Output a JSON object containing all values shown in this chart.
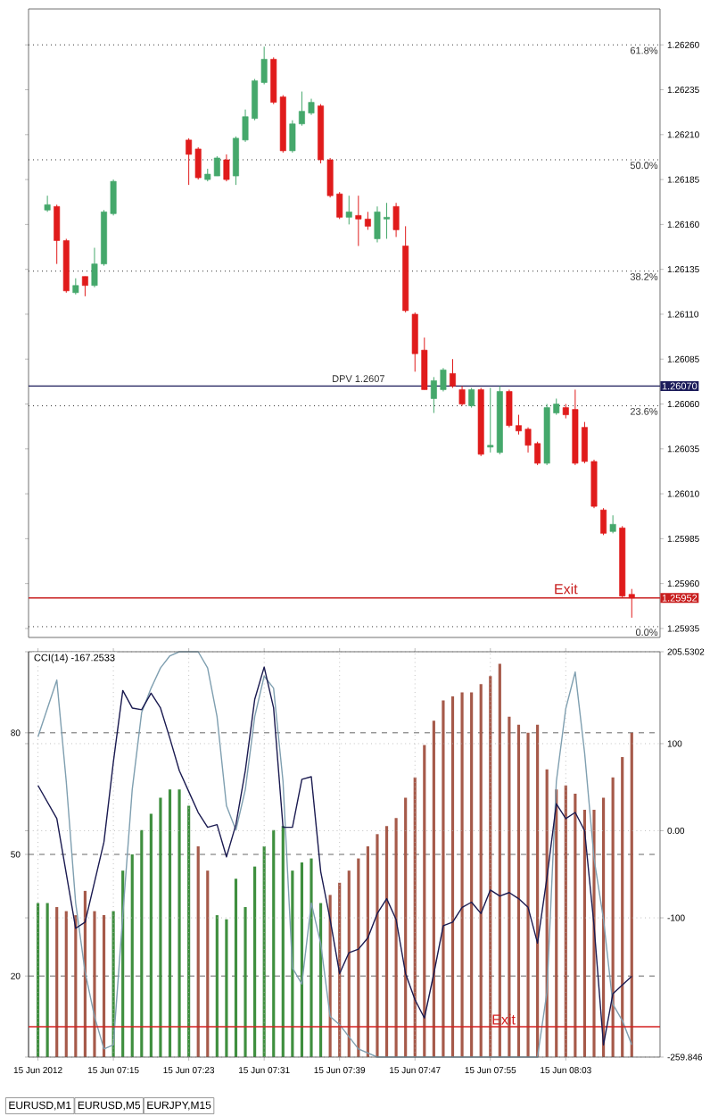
{
  "chart_data": [
    {
      "type": "candlestick",
      "xlim": [
        "2012-06-15T07:06",
        "2012-06-15T08:13"
      ],
      "tick_labels": "y",
      "ylim": [
        1.2593,
        1.2628
      ],
      "yticks": [
        {
          "value": 1.25935,
          "label": "1.25935"
        },
        {
          "value": 1.2596,
          "label": "1.25960"
        },
        {
          "value": 1.25985,
          "label": "1.25985"
        },
        {
          "value": 1.2601,
          "label": "1.26010"
        },
        {
          "value": 1.26035,
          "label": "1.26035"
        },
        {
          "value": 1.2606,
          "label": "1.26060"
        },
        {
          "value": 1.26085,
          "label": "1.26085"
        },
        {
          "value": 1.2611,
          "label": "1.26110"
        },
        {
          "value": 1.26135,
          "label": "1.26135"
        },
        {
          "value": 1.2616,
          "label": "1.26160"
        },
        {
          "value": 1.26185,
          "label": "1.26185"
        },
        {
          "value": 1.2621,
          "label": "1.26210"
        },
        {
          "value": 1.26235,
          "label": "1.26235"
        },
        {
          "value": 1.2626,
          "label": "1.26260"
        }
      ],
      "x": [
        "2012-06-15T07:08",
        "2012-06-15T07:09",
        "2012-06-15T07:10",
        "2012-06-15T07:11",
        "2012-06-15T07:12",
        "2012-06-15T07:13",
        "2012-06-15T07:14",
        "2012-06-15T07:15",
        "2012-06-15T07:23",
        "2012-06-15T07:24",
        "2012-06-15T07:25",
        "2012-06-15T07:26",
        "2012-06-15T07:27",
        "2012-06-15T07:28",
        "2012-06-15T07:29",
        "2012-06-15T07:30",
        "2012-06-15T07:31",
        "2012-06-15T07:32",
        "2012-06-15T07:33",
        "2012-06-15T07:34",
        "2012-06-15T07:35",
        "2012-06-15T07:36",
        "2012-06-15T07:37",
        "2012-06-15T07:38",
        "2012-06-15T07:39",
        "2012-06-15T07:40",
        "2012-06-15T07:41",
        "2012-06-15T07:42",
        "2012-06-15T07:43",
        "2012-06-15T07:44",
        "2012-06-15T07:45",
        "2012-06-15T07:46",
        "2012-06-15T07:47",
        "2012-06-15T07:48",
        "2012-06-15T07:49",
        "2012-06-15T07:50",
        "2012-06-15T07:51",
        "2012-06-15T07:52",
        "2012-06-15T07:53",
        "2012-06-15T07:54",
        "2012-06-15T07:55",
        "2012-06-15T07:56",
        "2012-06-15T07:57",
        "2012-06-15T07:58",
        "2012-06-15T07:59",
        "2012-06-15T08:00",
        "2012-06-15T08:01",
        "2012-06-15T08:02",
        "2012-06-15T08:03",
        "2012-06-15T08:04",
        "2012-06-15T08:05",
        "2012-06-15T08:06",
        "2012-06-15T08:07",
        "2012-06-15T08:08",
        "2012-06-15T08:09",
        "2012-06-15T08:10"
      ],
      "ohlc": [
        [
          1.26168,
          1.26176,
          1.26167,
          1.26171
        ],
        [
          1.2617,
          1.26171,
          1.26138,
          1.26151
        ],
        [
          1.26151,
          1.26152,
          1.26122,
          1.26123
        ],
        [
          1.26122,
          1.2613,
          1.26121,
          1.26126
        ],
        [
          1.26131,
          1.26131,
          1.2612,
          1.26126
        ],
        [
          1.26126,
          1.26147,
          1.26125,
          1.26138
        ],
        [
          1.26138,
          1.26168,
          1.26137,
          1.26167
        ],
        [
          1.26166,
          1.26185,
          1.26165,
          1.26184
        ],
        [
          1.26207,
          1.26208,
          1.26182,
          1.26199
        ],
        [
          1.26202,
          1.26203,
          1.26185,
          1.26186
        ],
        [
          1.26185,
          1.26191,
          1.26184,
          1.26188
        ],
        [
          1.26187,
          1.26198,
          1.26187,
          1.26197
        ],
        [
          1.26196,
          1.26199,
          1.26184,
          1.26185
        ],
        [
          1.26187,
          1.26209,
          1.26182,
          1.26208
        ],
        [
          1.26207,
          1.26224,
          1.26206,
          1.2622
        ],
        [
          1.26219,
          1.26241,
          1.26218,
          1.2624
        ],
        [
          1.26239,
          1.26259,
          1.26238,
          1.26252
        ],
        [
          1.26252,
          1.26253,
          1.26227,
          1.26228
        ],
        [
          1.26231,
          1.26232,
          1.262,
          1.26201
        ],
        [
          1.26201,
          1.26218,
          1.262,
          1.26216
        ],
        [
          1.26216,
          1.26234,
          1.26215,
          1.26223
        ],
        [
          1.26222,
          1.2623,
          1.26221,
          1.26228
        ],
        [
          1.26226,
          1.26227,
          1.26194,
          1.26196
        ],
        [
          1.26196,
          1.26197,
          1.26175,
          1.26176
        ],
        [
          1.26177,
          1.26178,
          1.26163,
          1.26164
        ],
        [
          1.26164,
          1.26176,
          1.2616,
          1.26167
        ],
        [
          1.26165,
          1.26176,
          1.26148,
          1.26163
        ],
        [
          1.26163,
          1.26167,
          1.26157,
          1.26159
        ],
        [
          1.26152,
          1.2617,
          1.2615,
          1.26167
        ],
        [
          1.26163,
          1.26172,
          1.26152,
          1.26164
        ],
        [
          1.2617,
          1.26172,
          1.26153,
          1.26157
        ],
        [
          1.26148,
          1.26159,
          1.26111,
          1.26112
        ],
        [
          1.2611,
          1.26111,
          1.26078,
          1.26088
        ],
        [
          1.2609,
          1.26097,
          1.26068,
          1.26068
        ],
        [
          1.26063,
          1.26075,
          1.26055,
          1.26073
        ],
        [
          1.26068,
          1.2608,
          1.26067,
          1.26079
        ],
        [
          1.26077,
          1.26085,
          1.26069,
          1.2607
        ],
        [
          1.26068,
          1.2607,
          1.26059,
          1.2606
        ],
        [
          1.26059,
          1.26069,
          1.26058,
          1.26068
        ],
        [
          1.26068,
          1.26069,
          1.26031,
          1.26032
        ],
        [
          1.26036,
          1.26069,
          1.26033,
          1.26037
        ],
        [
          1.26033,
          1.2607,
          1.26032,
          1.26067
        ],
        [
          1.26067,
          1.26068,
          1.26047,
          1.26048
        ],
        [
          1.26048,
          1.26054,
          1.26043,
          1.26045
        ],
        [
          1.26046,
          1.26047,
          1.26033,
          1.26037
        ],
        [
          1.26038,
          1.26039,
          1.26026,
          1.26027
        ],
        [
          1.26027,
          1.2606,
          1.26026,
          1.26058
        ],
        [
          1.26055,
          1.26063,
          1.26054,
          1.2606
        ],
        [
          1.26058,
          1.2606,
          1.26052,
          1.26054
        ],
        [
          1.26057,
          1.26068,
          1.26026,
          1.26027
        ],
        [
          1.26047,
          1.2605,
          1.26027,
          1.26028
        ],
        [
          1.26028,
          1.26029,
          1.26002,
          1.26003
        ],
        [
          1.26001,
          1.26002,
          1.25987,
          1.25988
        ],
        [
          1.25989,
          1.25998,
          1.25988,
          1.25993
        ],
        [
          1.25991,
          1.25992,
          1.25952,
          1.25953
        ],
        [
          1.25954,
          1.25957,
          1.25941,
          1.25952
        ]
      ],
      "colors": [
        "#45a86b",
        "#e01b1b",
        "#e01b1b",
        "#45a86b",
        "#e01b1b",
        "#45a86b",
        "#45a86b",
        "#45a86b",
        "#e01b1b",
        "#e01b1b",
        "#45a86b",
        "#45a86b",
        "#e01b1b",
        "#45a86b",
        "#45a86b",
        "#45a86b",
        "#45a86b",
        "#e01b1b",
        "#e01b1b",
        "#45a86b",
        "#45a86b",
        "#45a86b",
        "#e01b1b",
        "#e01b1b",
        "#e01b1b",
        "#45a86b",
        "#e01b1b",
        "#e01b1b",
        "#45a86b",
        "#45a86b",
        "#e01b1b",
        "#e01b1b",
        "#e01b1b",
        "#e01b1b",
        "#45a86b",
        "#45a86b",
        "#e01b1b",
        "#e01b1b",
        "#45a86b",
        "#e01b1b",
        "#45a86b",
        "#45a86b",
        "#e01b1b",
        "#e01b1b",
        "#e01b1b",
        "#e01b1b",
        "#45a86b",
        "#45a86b",
        "#e01b1b",
        "#e01b1b",
        "#e01b1b",
        "#e01b1b",
        "#e01b1b",
        "#45a86b",
        "#e01b1b",
        "#e01b1b"
      ],
      "ref_lines": [
        {
          "axis": "y",
          "value": 1.2607,
          "label": "1.26070",
          "color": "#1c1c5a"
        },
        {
          "axis": "y",
          "value": 1.25952,
          "label": "1.25952",
          "color": "#c81e1e"
        },
        {
          "axis": "y",
          "value": 1.2626,
          "color": "#333333",
          "line_style": "dotted"
        },
        {
          "axis": "y",
          "value": 1.26196,
          "color": "#333333",
          "line_style": "dotted"
        },
        {
          "axis": "y",
          "value": 1.26134,
          "color": "#333333",
          "line_style": "dotted"
        },
        {
          "axis": "y",
          "value": 1.26059,
          "color": "#333333",
          "line_style": "dotted"
        },
        {
          "axis": "y",
          "value": 1.25936,
          "color": "#333333",
          "line_style": "dotted"
        }
      ],
      "annotations": [
        {
          "text": "DPV 1.2607",
          "x": "2012-06-15T07:41",
          "y": 1.26071
        },
        {
          "text": "Exit",
          "x": "2012-06-15T08:03",
          "y": 1.25953
        },
        {
          "text": "61.8%",
          "x": "2012-06-15T08:13",
          "y": 1.2626
        },
        {
          "text": "50.0%",
          "x": "2012-06-15T08:13",
          "y": 1.26196
        },
        {
          "text": "38.2%",
          "x": "2012-06-15T08:13",
          "y": 1.26134
        },
        {
          "text": "23.6%",
          "x": "2012-06-15T08:13",
          "y": 1.26059
        },
        {
          "text": "0.0%",
          "x": "2012-06-15T08:13",
          "y": 1.25936
        }
      ]
    },
    {
      "type": "bar",
      "title": "CCI(14) -167.2533",
      "xlim": [
        "2012-06-15T07:06",
        "2012-06-15T08:13"
      ],
      "xticks": [
        {
          "value": "2012-06-15T07:07",
          "label": "15 Jun 2012"
        },
        {
          "value": "2012-06-15T07:15",
          "label": "15 Jun 07:15"
        },
        {
          "value": "2012-06-15T07:23",
          "label": "15 Jun 07:23"
        },
        {
          "value": "2012-06-15T07:31",
          "label": "15 Jun 07:31"
        },
        {
          "value": "2012-06-15T07:39",
          "label": "15 Jun 07:39"
        },
        {
          "value": "2012-06-15T07:47",
          "label": "15 Jun 07:47"
        },
        {
          "value": "2012-06-15T07:55",
          "label": "15 Jun 07:55"
        },
        {
          "value": "2012-06-15T08:03",
          "label": "15 Jun 08:03"
        }
      ],
      "ylim": [
        -259.846,
        205.5302
      ],
      "yticks": [
        {
          "value": 205.5302,
          "label": "205.5302"
        },
        100,
        {
          "value": 0,
          "label": "0.00"
        },
        -100,
        {
          "value": -259.846,
          "label": "-259.846"
        }
      ],
      "y2lim": [
        0,
        100
      ],
      "y2ticks": [
        80,
        50,
        20
      ],
      "series": [
        {
          "type": "bar",
          "axis": "y2",
          "x": [
            "2012-06-15T07:07",
            "2012-06-15T07:08",
            "2012-06-15T07:09",
            "2012-06-15T07:10",
            "2012-06-15T07:11",
            "2012-06-15T07:12",
            "2012-06-15T07:13",
            "2012-06-15T07:14",
            "2012-06-15T07:15",
            "2012-06-15T07:16",
            "2012-06-15T07:17",
            "2012-06-15T07:18",
            "2012-06-15T07:19",
            "2012-06-15T07:20",
            "2012-06-15T07:21",
            "2012-06-15T07:22",
            "2012-06-15T07:23",
            "2012-06-15T07:24",
            "2012-06-15T07:25",
            "2012-06-15T07:26",
            "2012-06-15T07:27",
            "2012-06-15T07:28",
            "2012-06-15T07:29",
            "2012-06-15T07:30",
            "2012-06-15T07:31",
            "2012-06-15T07:32",
            "2012-06-15T07:33",
            "2012-06-15T07:34",
            "2012-06-15T07:35",
            "2012-06-15T07:36",
            "2012-06-15T07:37",
            "2012-06-15T07:38",
            "2012-06-15T07:39",
            "2012-06-15T07:40",
            "2012-06-15T07:41",
            "2012-06-15T07:42",
            "2012-06-15T07:43",
            "2012-06-15T07:44",
            "2012-06-15T07:45",
            "2012-06-15T07:46",
            "2012-06-15T07:47",
            "2012-06-15T07:48",
            "2012-06-15T07:49",
            "2012-06-15T07:50",
            "2012-06-15T07:51",
            "2012-06-15T07:52",
            "2012-06-15T07:53",
            "2012-06-15T07:54",
            "2012-06-15T07:55",
            "2012-06-15T07:56",
            "2012-06-15T07:57",
            "2012-06-15T07:58",
            "2012-06-15T07:59",
            "2012-06-15T08:00",
            "2012-06-15T08:01",
            "2012-06-15T08:02",
            "2012-06-15T08:03",
            "2012-06-15T08:04",
            "2012-06-15T08:05",
            "2012-06-15T08:06",
            "2012-06-15T08:07",
            "2012-06-15T08:08",
            "2012-06-15T08:09",
            "2012-06-15T08:10"
          ],
          "values": [
            38,
            38,
            37,
            36,
            35,
            41,
            36,
            35,
            36,
            46,
            50,
            56,
            60,
            64,
            66,
            66,
            62,
            52,
            46,
            35,
            34,
            44,
            37,
            47,
            52,
            56,
            57,
            46,
            48,
            49,
            38,
            40,
            43,
            46,
            49,
            52,
            55,
            57,
            59,
            64,
            69,
            77,
            83,
            88,
            89,
            90,
            90,
            92,
            94,
            97,
            84,
            82,
            80,
            82,
            71,
            66,
            67,
            65,
            61,
            61,
            64,
            69,
            74,
            80
          ],
          "colors": [
            "#3f8f3f",
            "#3f8f3f",
            "#a65a4a",
            "#a65a4a",
            "#a65a4a",
            "#a65a4a",
            "#a65a4a",
            "#a65a4a",
            "#3f8f3f",
            "#3f8f3f",
            "#3f8f3f",
            "#3f8f3f",
            "#3f8f3f",
            "#3f8f3f",
            "#3f8f3f",
            "#3f8f3f",
            "#3f8f3f",
            "#a65a4a",
            "#a65a4a",
            "#3f8f3f",
            "#3f8f3f",
            "#3f8f3f",
            "#3f8f3f",
            "#3f8f3f",
            "#3f8f3f",
            "#3f8f3f",
            "#3f8f3f",
            "#3f8f3f",
            "#3f8f3f",
            "#3f8f3f",
            "#3f8f3f",
            "#a65a4a",
            "#a65a4a",
            "#a65a4a",
            "#a65a4a",
            "#a65a4a",
            "#a65a4a",
            "#a65a4a",
            "#a65a4a",
            "#a65a4a",
            "#a65a4a",
            "#a65a4a",
            "#a65a4a",
            "#a65a4a",
            "#a65a4a",
            "#a65a4a",
            "#a65a4a",
            "#a65a4a",
            "#a65a4a",
            "#a65a4a",
            "#a65a4a",
            "#a65a4a",
            "#a65a4a",
            "#a65a4a",
            "#a65a4a",
            "#a65a4a",
            "#a65a4a",
            "#a65a4a",
            "#a65a4a",
            "#a65a4a",
            "#a65a4a",
            "#a65a4a",
            "#a65a4a",
            "#a65a4a"
          ]
        },
        {
          "type": "line",
          "axis": "y2",
          "color": "#7f9fb0",
          "x": [
            "2012-06-15T07:07",
            "2012-06-15T07:09",
            "2012-06-15T07:10",
            "2012-06-15T07:11",
            "2012-06-15T07:12",
            "2012-06-15T07:13",
            "2012-06-15T07:14",
            "2012-06-15T07:15",
            "2012-06-15T07:16",
            "2012-06-15T07:17",
            "2012-06-15T07:18",
            "2012-06-15T07:19",
            "2012-06-15T07:20",
            "2012-06-15T07:21",
            "2012-06-15T07:22",
            "2012-06-15T07:23",
            "2012-06-15T07:24",
            "2012-06-15T07:25",
            "2012-06-15T07:26",
            "2012-06-15T07:27",
            "2012-06-15T07:28",
            "2012-06-15T07:29",
            "2012-06-15T07:30",
            "2012-06-15T07:31",
            "2012-06-15T07:32",
            "2012-06-15T07:33",
            "2012-06-15T07:34",
            "2012-06-15T07:35",
            "2012-06-15T07:36",
            "2012-06-15T07:37",
            "2012-06-15T07:38",
            "2012-06-15T07:39",
            "2012-06-15T07:41",
            "2012-06-15T07:43",
            "2012-06-15T07:45",
            "2012-06-15T07:49",
            "2012-06-15T07:55",
            "2012-06-15T08:00",
            "2012-06-15T08:01",
            "2012-06-15T08:02",
            "2012-06-15T08:03",
            "2012-06-15T08:04",
            "2012-06-15T08:05",
            "2012-06-15T08:06",
            "2012-06-15T08:07",
            "2012-06-15T08:08",
            "2012-06-15T08:09",
            "2012-06-15T08:10"
          ],
          "values": [
            79,
            93,
            68,
            38,
            21,
            10,
            2,
            3,
            35,
            66,
            85,
            91,
            96,
            99,
            100,
            100,
            100,
            96,
            84,
            62,
            56,
            66,
            84,
            94,
            91,
            68,
            22,
            18,
            38,
            28,
            10,
            8,
            2,
            0,
            0,
            0,
            0,
            0,
            16,
            68,
            86,
            95,
            75,
            49,
            34,
            13,
            9,
            3
          ]
        },
        {
          "type": "line",
          "axis": "y",
          "color": "#1a1a50",
          "x": [
            "2012-06-15T07:07",
            "2012-06-15T07:09",
            "2012-06-15T07:11",
            "2012-06-15T07:12",
            "2012-06-15T07:14",
            "2012-06-15T07:15",
            "2012-06-15T07:16",
            "2012-06-15T07:17",
            "2012-06-15T07:18",
            "2012-06-15T07:19",
            "2012-06-15T07:20",
            "2012-06-15T07:21",
            "2012-06-15T07:22",
            "2012-06-15T07:23",
            "2012-06-15T07:24",
            "2012-06-15T07:25",
            "2012-06-15T07:26",
            "2012-06-15T07:27",
            "2012-06-15T07:28",
            "2012-06-15T07:29",
            "2012-06-15T07:30",
            "2012-06-15T07:31",
            "2012-06-15T07:32",
            "2012-06-15T07:33",
            "2012-06-15T07:34",
            "2012-06-15T07:35",
            "2012-06-15T07:36",
            "2012-06-15T07:37",
            "2012-06-15T07:38",
            "2012-06-15T07:39",
            "2012-06-15T07:40",
            "2012-06-15T07:41",
            "2012-06-15T07:42",
            "2012-06-15T07:43",
            "2012-06-15T07:44",
            "2012-06-15T07:45",
            "2012-06-15T07:46",
            "2012-06-15T07:47",
            "2012-06-15T07:48",
            "2012-06-15T07:49",
            "2012-06-15T07:50",
            "2012-06-15T07:51",
            "2012-06-15T07:52",
            "2012-06-15T07:53",
            "2012-06-15T07:54",
            "2012-06-15T07:55",
            "2012-06-15T07:56",
            "2012-06-15T07:57",
            "2012-06-15T07:58",
            "2012-06-15T07:59",
            "2012-06-15T08:00",
            "2012-06-15T08:01",
            "2012-06-15T08:02",
            "2012-06-15T08:03",
            "2012-06-15T08:04",
            "2012-06-15T08:05",
            "2012-06-15T08:06",
            "2012-06-15T08:07",
            "2012-06-15T08:08",
            "2012-06-15T08:09",
            "2012-06-15T08:10"
          ],
          "values": [
            52,
            14,
            -112,
            -105,
            -13,
            79,
            161,
            141,
            139,
            158,
            141,
            106,
            69,
            45,
            21,
            4,
            7,
            -30,
            7,
            69,
            151,
            188,
            141,
            4,
            4,
            59,
            62,
            -47,
            -102,
            -164,
            -140,
            -136,
            -123,
            -95,
            -78,
            -102,
            -164,
            -194,
            -215,
            -164,
            -109,
            -105,
            -88,
            -82,
            -95,
            -68,
            -75,
            -71,
            -78,
            -88,
            -129,
            -54,
            31,
            14,
            21,
            0,
            -109,
            -246,
            -187,
            -177,
            -167
          ]
        }
      ],
      "grid": true,
      "ref_lines": [
        {
          "axis": "y",
          "value": -225,
          "label": "Exit",
          "color": "#d42020"
        }
      ],
      "annotations": [
        "EURUSD,M1",
        "EURUSD,M5",
        "EURJPY,M15"
      ]
    }
  ]
}
